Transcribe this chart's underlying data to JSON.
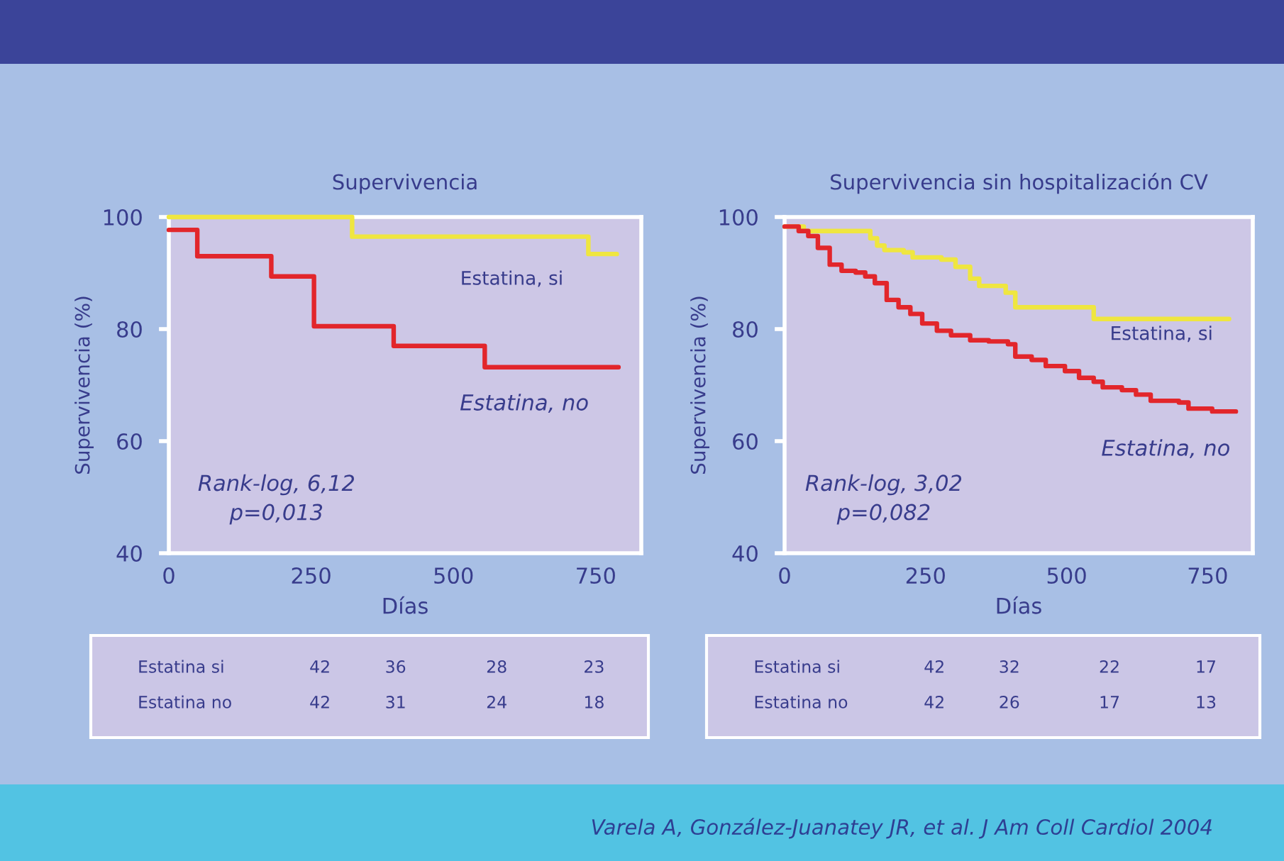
{
  "chart_data": [
    {
      "type": "step",
      "title": "Supervivencia",
      "xlabel": "Días",
      "ylabel": "Supervivencia (%)",
      "xlim": [
        0,
        830
      ],
      "ylim": [
        40,
        100
      ],
      "xticks": [
        0,
        250,
        500,
        750
      ],
      "yticks": [
        40,
        60,
        80,
        100
      ],
      "grid": false,
      "legend": false,
      "series": [
        {
          "name": "Estatina, si",
          "color": "#efe640",
          "x": [
            0,
            322,
            737,
            787
          ],
          "values": [
            100,
            96.5,
            93.4,
            93.4
          ]
        },
        {
          "name": "Estatina, no",
          "color": "#e2262b",
          "x": [
            0,
            50,
            180,
            255,
            395,
            555,
            790
          ],
          "values": [
            97.7,
            93,
            89.4,
            80.5,
            77,
            73.2,
            73.2
          ]
        }
      ],
      "annotations": [
        "Rank-log, 6,12\np=0,013",
        "Estatina si",
        "42",
        "36",
        "28",
        "23",
        "Estatina no",
        "42",
        "31",
        "24",
        "18"
      ]
    },
    {
      "type": "step",
      "title": "Supervivencia sin hospitalización CV",
      "xlabel": "Días",
      "ylabel": "Supervivencia (%)",
      "xlim": [
        0,
        830
      ],
      "ylim": [
        40,
        100
      ],
      "xticks": [
        0,
        250,
        500,
        750
      ],
      "yticks": [
        40,
        60,
        80,
        100
      ],
      "grid": false,
      "legend": false,
      "series": [
        {
          "name": "Estatina, si",
          "color": "#efe640",
          "x": [
            0,
            34,
            152,
            164,
            177,
            211,
            227,
            278,
            303,
            329,
            345,
            392,
            409,
            548,
            788
          ],
          "values": [
            98.3,
            97.5,
            96.2,
            94.9,
            94.1,
            93.7,
            92.8,
            92.4,
            91.1,
            89,
            87.7,
            86.5,
            83.9,
            81.8,
            81.8
          ]
        },
        {
          "name": "Estatina, no",
          "color": "#e2262b",
          "x": [
            0,
            25,
            42,
            59,
            80,
            101,
            126,
            143,
            160,
            181,
            202,
            223,
            244,
            270,
            295,
            329,
            362,
            396,
            409,
            438,
            463,
            497,
            522,
            548,
            564,
            598,
            623,
            649,
            699,
            716,
            758,
            800
          ],
          "values": [
            98.3,
            97.5,
            96.6,
            94.5,
            91.5,
            90.4,
            90.1,
            89.4,
            88.2,
            85.2,
            83.9,
            82.7,
            81,
            79.7,
            78.9,
            78,
            77.8,
            77.3,
            75.1,
            74.5,
            73.4,
            72.5,
            71.3,
            70.6,
            69.6,
            69.1,
            68.3,
            67.2,
            66.9,
            65.8,
            65.3,
            65.3
          ]
        }
      ],
      "annotations": [
        "Rank-log, 3,02\np=0,082",
        "Estatina si",
        "42",
        "32",
        "22",
        "17",
        "Estatina no",
        "42",
        "26",
        "17",
        "13",
        "Varela A, González-Juanatey JR, et al. J Am Coll Cardiol 2004"
      ]
    }
  ]
}
